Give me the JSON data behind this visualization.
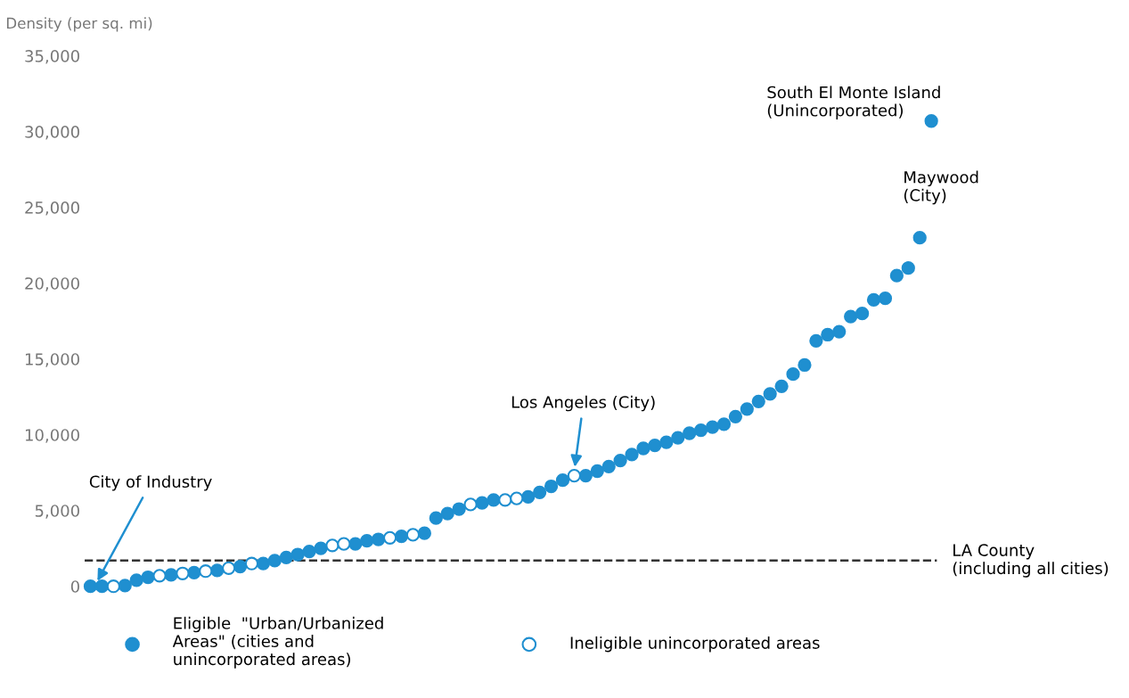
{
  "chart_data": {
    "type": "scatter",
    "ylabel": "Density (per sq. mi)",
    "categories": [
      null,
      null,
      null,
      null,
      null,
      null,
      null,
      null,
      null,
      null,
      null,
      null,
      null,
      null,
      null,
      null,
      null,
      null,
      null,
      null,
      null,
      null,
      null,
      null,
      null,
      null,
      null,
      null,
      null,
      null,
      null,
      null,
      null,
      null,
      null,
      null,
      null,
      null,
      null,
      null,
      null,
      null,
      null,
      null,
      null,
      null,
      null,
      null,
      null,
      null,
      null,
      null,
      null,
      null,
      null,
      null,
      null,
      null,
      null,
      null,
      null,
      null,
      null,
      null,
      null,
      null,
      null,
      null,
      null,
      null,
      null,
      null,
      null,
      null
    ],
    "series": [
      {
        "name": "Eligible  \"Urban/Urbanized\nAreas\" (cities and\nunincorporated areas)",
        "color": "#1f8fd0",
        "values": [
          0,
          0,
          null,
          50,
          400,
          600,
          null,
          750,
          null,
          900,
          null,
          1050,
          null,
          1300,
          null,
          1500,
          1700,
          1900,
          2100,
          2300,
          2500,
          null,
          null,
          2800,
          3000,
          3100,
          null,
          3300,
          null,
          3500,
          4500,
          4800,
          5100,
          null,
          5500,
          5700,
          null,
          null,
          5900,
          6200,
          6600,
          7000,
          null,
          7300,
          7600,
          7900,
          8300,
          8700,
          9100,
          9300,
          9500,
          9800,
          10100,
          10300,
          10500,
          10700,
          11200,
          11700,
          12200,
          12700,
          13200,
          14000,
          14600,
          16200,
          16600,
          16800,
          17800,
          18000,
          18900,
          19000,
          20500,
          21000,
          23000,
          30700
        ]
      },
      {
        "name": "Ineligible unincorporated areas",
        "color": "#ffffff",
        "values": [
          null,
          null,
          0,
          null,
          null,
          null,
          700,
          null,
          850,
          null,
          1000,
          null,
          1200,
          null,
          1500,
          null,
          null,
          null,
          null,
          null,
          null,
          2700,
          2800,
          null,
          null,
          null,
          3200,
          null,
          3400,
          null,
          null,
          null,
          null,
          5400,
          null,
          null,
          5700,
          5800,
          null,
          null,
          null,
          null,
          7300,
          null,
          null,
          null,
          null,
          null,
          null,
          null,
          null,
          null,
          null,
          null,
          null,
          null,
          null,
          null,
          null,
          null,
          null,
          null,
          null,
          null,
          null,
          null,
          null,
          null,
          null,
          null,
          null,
          null,
          null,
          null
        ]
      }
    ],
    "ylim": [
      0,
      35000
    ],
    "yticks": [
      {
        "value": 0,
        "label": "0"
      },
      {
        "value": 5000,
        "label": "5,000"
      },
      {
        "value": 10000,
        "label": "10,000"
      },
      {
        "value": 15000,
        "label": "15,000"
      },
      {
        "value": 20000,
        "label": "20,000"
      },
      {
        "value": 25000,
        "label": "25,000"
      },
      {
        "value": 30000,
        "label": "30,000"
      },
      {
        "value": 35000,
        "label": "35,000"
      }
    ],
    "tick_labels": "y",
    "grid": false,
    "marker": "circle",
    "legend": "bottom",
    "ref_lines": [
      {
        "axis": "y",
        "value": 1700,
        "label": "LA County\n(including all cities)",
        "color": "#333333",
        "line_style": "dashed"
      }
    ],
    "annotations": [
      "City of Industry",
      "Los Angeles (City)",
      "Maywood\n(City)",
      "South El Monte Island\n(Unincorporated)"
    ]
  }
}
